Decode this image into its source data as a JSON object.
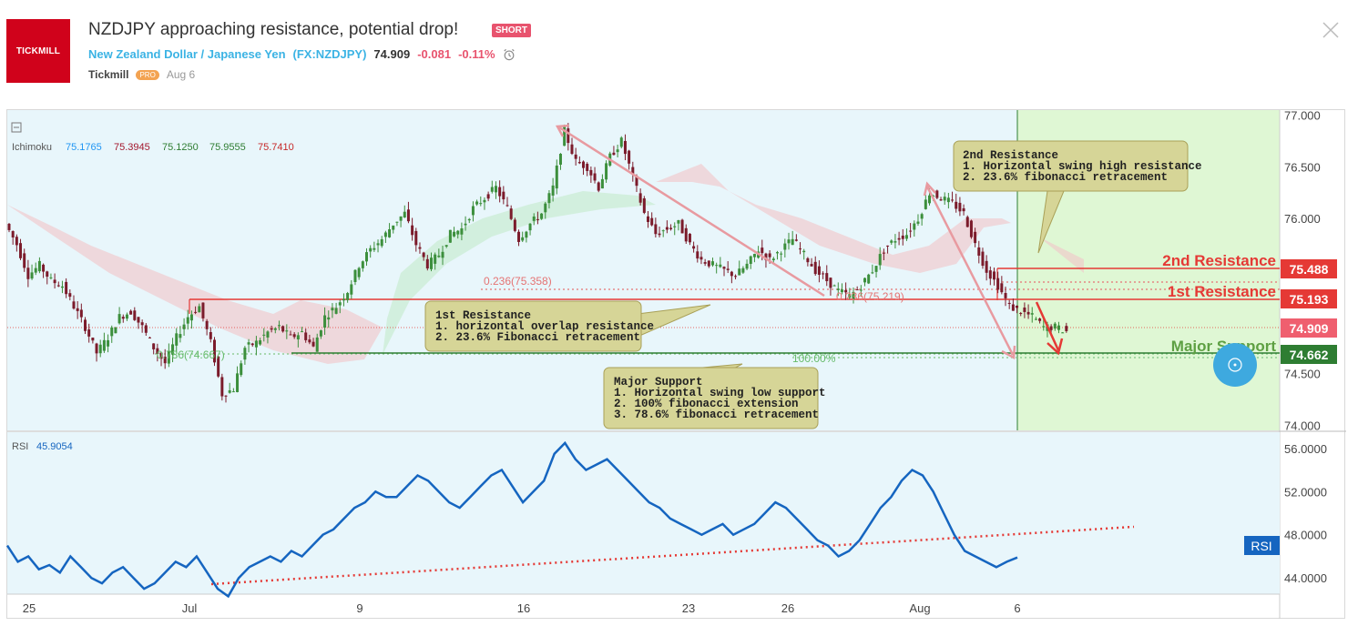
{
  "header": {
    "logo_text": "TICKMILL",
    "title": "NZDJPY approaching resistance, potential drop!",
    "badge": "SHORT",
    "symbol_name": "New Zealand Dollar / Japanese Yen",
    "symbol_code": "(FX:NZDJPY)",
    "price": "74.909",
    "change": "-0.081",
    "change_pct": "-0.11%",
    "author": "Tickmill",
    "author_badge": "PRO",
    "date": "Aug 6"
  },
  "indicators": {
    "ichimoku_label": "Ichimoku",
    "ichimoku_values": [
      "75.1765",
      "75.3945",
      "75.1250",
      "75.9555",
      "75.7410"
    ],
    "ichimoku_colors": [
      "#2196f3",
      "#a3172d",
      "#2e7d32",
      "#2e7d32",
      "#c62828"
    ],
    "rsi_label": "RSI",
    "rsi_value": "45.9054",
    "rsi_tag": "RSI"
  },
  "annotations": {
    "resistance1_box": [
      "1st Resistance",
      "1. horizontal overlap resistance",
      "2. 23.6% Fibonacci retracement"
    ],
    "resistance2_box": [
      "2nd Resistance",
      "1. Horizontal swing high resistance",
      "2. 23.6% fibonacci retracement"
    ],
    "support_box": [
      "Major Support",
      "1. Horizontal swing low support",
      "2. 100% fibonacci extension",
      "3. 78.6% fibonacci retracement"
    ],
    "level_2nd": "2nd Resistance",
    "level_1st": "1st Resistance",
    "level_support": "Major Support",
    "fib_a": "0.236(75.358)",
    "fib_b": "0.236(75.219)",
    "fib_c": "0.786(74.667)",
    "fib_d": "100.00%"
  },
  "chart_data": [
    {
      "type": "candlestick",
      "title": "NZDJPY",
      "x_ticks": [
        "25",
        "Jul",
        "9",
        "16",
        "23",
        "26",
        "Aug",
        "6"
      ],
      "y_ticks": [
        "77.000",
        "76.500",
        "76.000",
        "75.500",
        "74.500",
        "74.000"
      ],
      "ylim": [
        73.95,
        77.05
      ],
      "close_path": [
        75.95,
        75.75,
        75.45,
        75.55,
        75.4,
        75.35,
        75.15,
        74.95,
        74.7,
        74.85,
        75.05,
        75.1,
        74.95,
        74.75,
        74.6,
        74.85,
        75.05,
        75.15,
        74.8,
        74.3,
        74.35,
        74.75,
        74.8,
        74.9,
        74.95,
        74.85,
        74.9,
        74.75,
        75.05,
        75.15,
        75.3,
        75.55,
        75.7,
        75.8,
        75.95,
        76.05,
        75.75,
        75.55,
        75.65,
        75.85,
        75.9,
        76.1,
        76.2,
        76.3,
        76.1,
        75.8,
        75.95,
        76.05,
        76.3,
        76.85,
        76.55,
        76.5,
        76.3,
        76.6,
        76.75,
        76.4,
        76.05,
        75.85,
        75.9,
        75.95,
        75.75,
        75.6,
        75.55,
        75.5,
        75.45,
        75.55,
        75.7,
        75.6,
        75.7,
        75.8,
        75.65,
        75.5,
        75.4,
        75.3,
        75.25,
        75.35,
        75.5,
        75.7,
        75.8,
        75.85,
        76.0,
        76.25,
        76.2,
        76.15,
        76.05,
        75.75,
        75.5,
        75.35,
        75.15,
        75.1,
        75.05,
        74.95,
        74.95,
        74.909
      ],
      "current_price": 74.909,
      "levels": [
        {
          "name": "2nd Resistance",
          "value": 75.488,
          "color": "#e53935"
        },
        {
          "name": "1st Resistance",
          "value": 75.193,
          "color": "#e53935"
        },
        {
          "name": "Major Support",
          "value": 74.662,
          "color": "#2e7d32"
        }
      ],
      "price_tags": [
        "75.488",
        "75.193",
        "74.909",
        "74.662"
      ]
    },
    {
      "type": "line",
      "title": "RSI",
      "y_ticks": [
        "56.0000",
        "52.0000",
        "48.0000",
        "44.0000"
      ],
      "ylim": [
        42.5,
        57.5
      ],
      "series": [
        {
          "name": "RSI",
          "color": "#1565c0",
          "values": [
            47,
            45.5,
            46,
            44.8,
            45.2,
            44.5,
            46,
            45,
            44,
            43.5,
            44.5,
            45,
            44,
            43,
            43.5,
            44.5,
            45.5,
            45,
            46,
            44.5,
            43,
            42.3,
            44,
            45,
            45.5,
            46,
            45.5,
            46.5,
            46,
            47,
            48,
            48.5,
            49.5,
            50.5,
            51,
            52,
            51.5,
            51.5,
            52.5,
            53.5,
            53,
            52,
            51,
            50.5,
            51.5,
            52.5,
            53.5,
            54,
            52.5,
            51,
            52,
            53,
            55.5,
            56.5,
            55,
            54,
            54.5,
            55,
            54,
            53,
            52,
            51,
            50.5,
            49.5,
            49,
            48.5,
            48,
            48.5,
            49,
            48,
            48.5,
            49,
            50,
            51,
            50.5,
            49.5,
            48.5,
            47.5,
            47,
            46,
            46.5,
            47.5,
            49,
            50.5,
            51.5,
            53,
            54,
            53.5,
            52,
            50,
            48,
            46.5,
            46,
            45.5,
            45,
            45.5,
            45.9
          ]
        }
      ],
      "trendline": "dotted-rising"
    }
  ]
}
